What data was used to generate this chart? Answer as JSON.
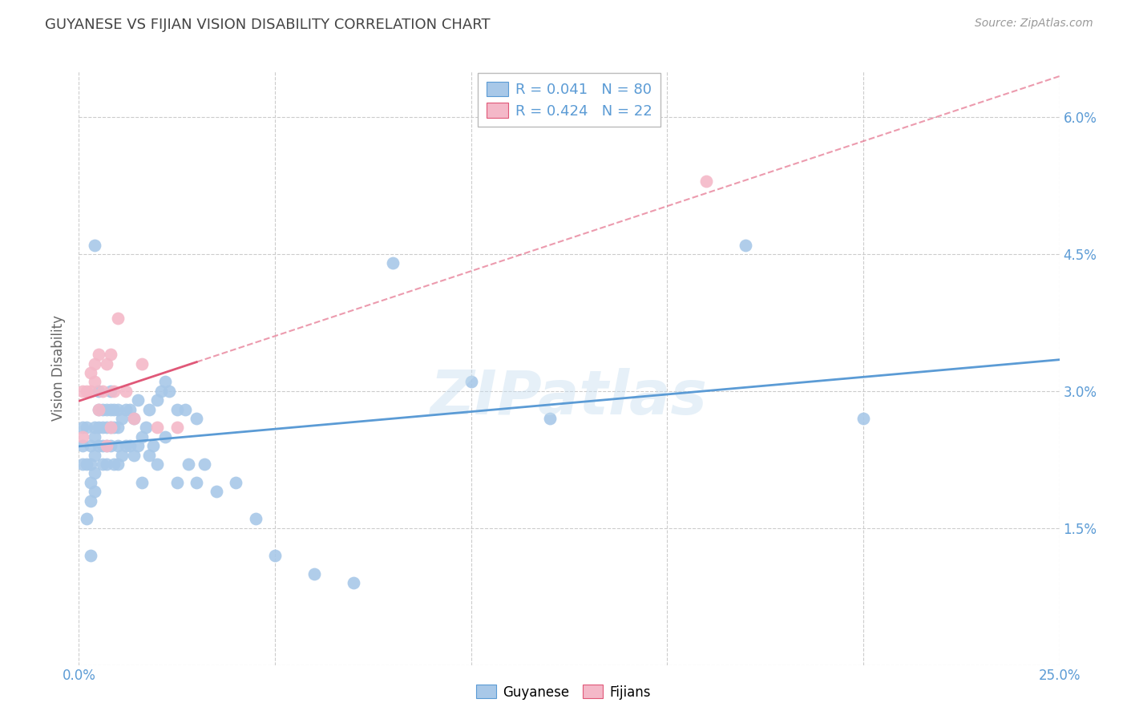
{
  "title": "GUYANESE VS FIJIAN VISION DISABILITY CORRELATION CHART",
  "source": "Source: ZipAtlas.com",
  "ylabel": "Vision Disability",
  "xlim": [
    0.0,
    0.25
  ],
  "ylim": [
    0.0,
    0.065
  ],
  "xticks": [
    0.0,
    0.05,
    0.1,
    0.15,
    0.2,
    0.25
  ],
  "xticklabels_shown": [
    "0.0%",
    "",
    "",
    "",
    "",
    "25.0%"
  ],
  "yticks": [
    0.0,
    0.015,
    0.03,
    0.045,
    0.06
  ],
  "yticklabels_right": [
    "",
    "1.5%",
    "3.0%",
    "4.5%",
    "6.0%"
  ],
  "guyanese_color": "#a8c8e8",
  "fijian_color": "#f4b8c8",
  "guyanese_line_color": "#5b9bd5",
  "fijian_line_color": "#e05878",
  "background_color": "#ffffff",
  "grid_color": "#cccccc",
  "legend_R_guyanese": "R = 0.041",
  "legend_N_guyanese": "N = 80",
  "legend_R_fijian": "R = 0.424",
  "legend_N_fijian": "N = 22",
  "title_color": "#444444",
  "axis_tick_color": "#5b9bd5",
  "guyanese_x": [
    0.001,
    0.001,
    0.002,
    0.002,
    0.003,
    0.003,
    0.003,
    0.003,
    0.004,
    0.004,
    0.004,
    0.004,
    0.004,
    0.005,
    0.005,
    0.005,
    0.005,
    0.006,
    0.006,
    0.006,
    0.006,
    0.007,
    0.007,
    0.007,
    0.007,
    0.008,
    0.008,
    0.008,
    0.008,
    0.009,
    0.009,
    0.009,
    0.01,
    0.01,
    0.01,
    0.01,
    0.011,
    0.011,
    0.012,
    0.012,
    0.013,
    0.013,
    0.014,
    0.014,
    0.015,
    0.015,
    0.016,
    0.016,
    0.017,
    0.018,
    0.018,
    0.019,
    0.02,
    0.02,
    0.021,
    0.022,
    0.022,
    0.023,
    0.025,
    0.025,
    0.027,
    0.028,
    0.03,
    0.03,
    0.032,
    0.035,
    0.04,
    0.045,
    0.05,
    0.06,
    0.07,
    0.08,
    0.1,
    0.12,
    0.17,
    0.2,
    0.001,
    0.002,
    0.003,
    0.004
  ],
  "guyanese_y": [
    0.026,
    0.024,
    0.026,
    0.022,
    0.024,
    0.022,
    0.02,
    0.018,
    0.026,
    0.025,
    0.023,
    0.021,
    0.019,
    0.03,
    0.028,
    0.026,
    0.024,
    0.028,
    0.026,
    0.024,
    0.022,
    0.028,
    0.026,
    0.024,
    0.022,
    0.03,
    0.028,
    0.026,
    0.024,
    0.028,
    0.026,
    0.022,
    0.028,
    0.026,
    0.024,
    0.022,
    0.027,
    0.023,
    0.028,
    0.024,
    0.028,
    0.024,
    0.027,
    0.023,
    0.029,
    0.024,
    0.025,
    0.02,
    0.026,
    0.028,
    0.023,
    0.024,
    0.029,
    0.022,
    0.03,
    0.031,
    0.025,
    0.03,
    0.028,
    0.02,
    0.028,
    0.022,
    0.027,
    0.02,
    0.022,
    0.019,
    0.02,
    0.016,
    0.012,
    0.01,
    0.009,
    0.044,
    0.031,
    0.027,
    0.046,
    0.027,
    0.022,
    0.016,
    0.012,
    0.046
  ],
  "fijian_x": [
    0.001,
    0.001,
    0.002,
    0.003,
    0.003,
    0.004,
    0.004,
    0.005,
    0.005,
    0.006,
    0.007,
    0.007,
    0.008,
    0.008,
    0.009,
    0.01,
    0.012,
    0.014,
    0.016,
    0.02,
    0.025,
    0.16
  ],
  "fijian_y": [
    0.025,
    0.03,
    0.03,
    0.032,
    0.03,
    0.033,
    0.031,
    0.034,
    0.028,
    0.03,
    0.033,
    0.024,
    0.034,
    0.026,
    0.03,
    0.038,
    0.03,
    0.027,
    0.033,
    0.026,
    0.026,
    0.053
  ]
}
